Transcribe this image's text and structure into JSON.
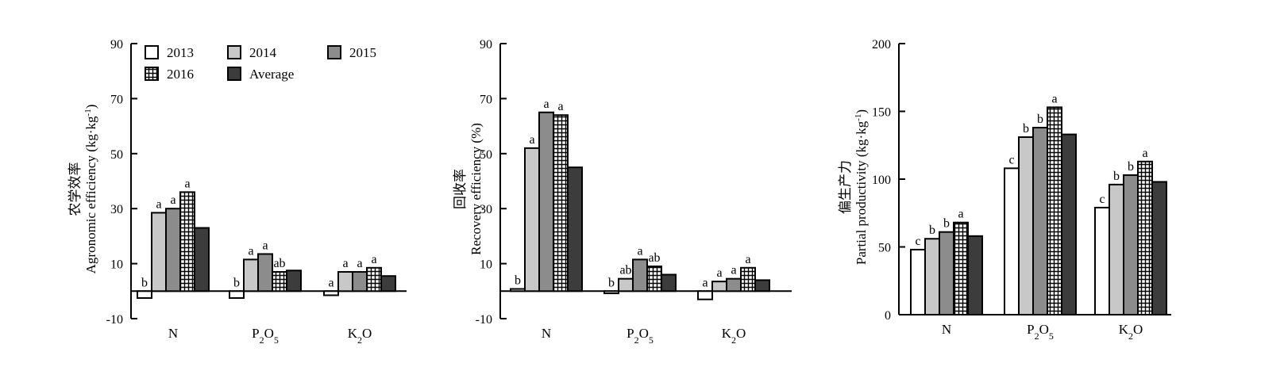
{
  "colors": {
    "2013": "#ffffff",
    "2014": "#c8c8c8",
    "2015": "#8c8c8c",
    "2016": "#ffffff",
    "Average": "#3c3c3c"
  },
  "legend": [
    "2013",
    "2014",
    "2015",
    "2016",
    "Average"
  ],
  "chart_data": [
    {
      "type": "bar",
      "ylabel": [
        "农学效率",
        "Agronomic efficiency (kg·kg",
        "-1",
        ")"
      ],
      "ylim": [
        -10,
        90
      ],
      "yticks": [
        -10,
        10,
        30,
        50,
        70,
        90
      ],
      "categories": [
        [
          "N"
        ],
        [
          "P",
          "2",
          "O",
          "5"
        ],
        [
          "K",
          "2",
          "O"
        ]
      ],
      "series": [
        {
          "name": "2013",
          "values": [
            -2.5,
            -2.5,
            -1.5
          ]
        },
        {
          "name": "2014",
          "values": [
            28.5,
            11.5,
            7
          ]
        },
        {
          "name": "2015",
          "values": [
            30,
            13.5,
            7
          ]
        },
        {
          "name": "2016",
          "values": [
            36,
            7,
            8.5
          ]
        },
        {
          "name": "Average",
          "values": [
            23,
            7.5,
            5.5
          ]
        }
      ],
      "letters": [
        [
          "b",
          "a",
          "a",
          "a",
          ""
        ],
        [
          "b",
          "a",
          "a",
          "ab",
          ""
        ],
        [
          "a",
          "a",
          "a",
          "a",
          ""
        ]
      ],
      "legend_placement": "top-left"
    },
    {
      "type": "bar",
      "ylabel": [
        "回收率",
        "Recovery efficiency (%)"
      ],
      "ylim": [
        -10,
        90
      ],
      "yticks": [
        -10,
        10,
        30,
        50,
        70,
        90
      ],
      "categories": [
        [
          "N"
        ],
        [
          "P",
          "2",
          "O",
          "5"
        ],
        [
          "K",
          "2",
          "O"
        ]
      ],
      "series": [
        {
          "name": "2013",
          "values": [
            0.8,
            -0.8,
            -3
          ]
        },
        {
          "name": "2014",
          "values": [
            52,
            4.5,
            3.5
          ]
        },
        {
          "name": "2015",
          "values": [
            65,
            11.5,
            4.5
          ]
        },
        {
          "name": "2016",
          "values": [
            64,
            9,
            8.5
          ]
        },
        {
          "name": "Average",
          "values": [
            45,
            6,
            4
          ]
        }
      ],
      "letters": [
        [
          "b",
          "a",
          "a",
          "a",
          ""
        ],
        [
          "b",
          "ab",
          "a",
          "ab",
          ""
        ],
        [
          "a",
          "a",
          "a",
          "a",
          ""
        ]
      ]
    },
    {
      "type": "bar",
      "ylabel": [
        "偏生产力",
        "Partial productivity (kg·kg",
        "-1",
        ")"
      ],
      "ylim": [
        0,
        200
      ],
      "yticks": [
        0,
        50,
        100,
        150,
        200
      ],
      "categories": [
        [
          "N"
        ],
        [
          "P",
          "2",
          "O",
          "5"
        ],
        [
          "K",
          "2",
          "O"
        ]
      ],
      "series": [
        {
          "name": "2013",
          "values": [
            48,
            108,
            79
          ]
        },
        {
          "name": "2014",
          "values": [
            56,
            131,
            96
          ]
        },
        {
          "name": "2015",
          "values": [
            61,
            138,
            103
          ]
        },
        {
          "name": "2016",
          "values": [
            68,
            153,
            113
          ]
        },
        {
          "name": "Average",
          "values": [
            58,
            133,
            98
          ]
        }
      ],
      "letters": [
        [
          "c",
          "b",
          "b",
          "a",
          ""
        ],
        [
          "c",
          "b",
          "b",
          "a",
          ""
        ],
        [
          "c",
          "b",
          "b",
          "a",
          ""
        ]
      ]
    }
  ]
}
